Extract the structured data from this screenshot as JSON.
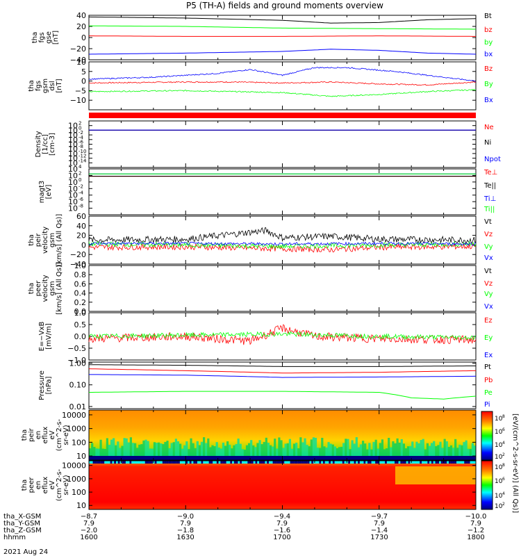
{
  "title": "P5 (TH-A) fields and ground moments overview",
  "date_label": "2021 Aug 24",
  "colorbar_label": "[eV/(cm^2-s-sr-eV)] (All Qs)]",
  "colorbar_ticks": [
    "10^8",
    "10^6",
    "10^4",
    "10^2"
  ],
  "colors": {
    "black": "#000000",
    "red": "#ff0000",
    "green": "#00ff00",
    "blue": "#0000ff",
    "magenta": "#ff00ff",
    "panel_border": "#000000"
  },
  "chart_data": [
    {
      "type": "line",
      "panel": "fgs-gse",
      "ylabel": [
        "tha",
        "fgs",
        "gse",
        "[nT]"
      ],
      "ylim": [
        -40,
        40
      ],
      "yticks": [
        "40",
        "20",
        "0",
        "−20",
        "−40"
      ],
      "xlim": [
        "16:00",
        "18:00"
      ],
      "series": [
        {
          "name": "Bt",
          "color": "black",
          "x": [
            "16:00",
            "16:30",
            "17:00",
            "17:15",
            "17:30",
            "17:45",
            "18:00"
          ],
          "y": [
            37,
            35,
            31,
            26,
            27,
            32,
            34
          ]
        },
        {
          "name": "bz",
          "color": "red",
          "x": [
            "16:00",
            "16:30",
            "17:00",
            "17:30",
            "18:00"
          ],
          "y": [
            3,
            2,
            2,
            3,
            2
          ]
        },
        {
          "name": "by",
          "color": "green",
          "x": [
            "16:00",
            "16:30",
            "17:00",
            "17:30",
            "18:00"
          ],
          "y": [
            21,
            20,
            17,
            16,
            15
          ]
        },
        {
          "name": "bx",
          "color": "blue",
          "x": [
            "16:00",
            "16:30",
            "17:00",
            "17:15",
            "17:30",
            "17:45",
            "18:00"
          ],
          "y": [
            -30,
            -28,
            -25,
            -21,
            -23,
            -28,
            -30
          ]
        }
      ]
    },
    {
      "type": "line",
      "panel": "fgs-gsm",
      "ylabel": [
        "tha",
        "fgs",
        "gsm",
        "dsl",
        "[nT]"
      ],
      "ylim": [
        -15,
        10
      ],
      "yticks": [
        "10",
        "5",
        "0",
        "−5",
        "−10"
      ],
      "xlim": [
        "16:00",
        "18:00"
      ],
      "series": [
        {
          "name": "Bz",
          "color": "red",
          "x": [
            "16:00",
            "16:30",
            "16:45",
            "17:00",
            "17:15",
            "17:30",
            "17:45",
            "18:00"
          ],
          "y": [
            -1,
            -0.5,
            -0.5,
            -1,
            -0.5,
            -1.5,
            -2,
            -0.5
          ]
        },
        {
          "name": "By",
          "color": "green",
          "x": [
            "16:00",
            "16:30",
            "17:00",
            "17:15",
            "17:30",
            "17:45",
            "18:00"
          ],
          "y": [
            -5.5,
            -5,
            -6,
            -8,
            -7,
            -5.5,
            -4.5
          ]
        },
        {
          "name": "Bx",
          "color": "blue",
          "x": [
            "16:00",
            "16:20",
            "16:40",
            "16:50",
            "17:00",
            "17:10",
            "17:20",
            "17:35",
            "17:50",
            "18:00"
          ],
          "y": [
            1,
            2,
            4,
            6,
            3,
            7,
            7,
            5,
            2,
            0
          ]
        }
      ]
    },
    {
      "type": "line",
      "panel": "density",
      "ylabel": [
        "Density",
        "[1/cc]",
        "[cm-3]"
      ],
      "ylim_log10": [
        -16,
        4
      ],
      "yticks": [
        "10^2",
        "10^0",
        "10^-2",
        "10^-4",
        "10^-6",
        "10^-8",
        "10^-10",
        "10^-12",
        "10^-14"
      ],
      "xlim": [
        "16:00",
        "18:00"
      ],
      "series": [
        {
          "name": "Ne",
          "color": "red",
          "x": [
            "16:00",
            "18:00"
          ],
          "y": [
            1,
            1
          ]
        },
        {
          "name": "Ni",
          "color": "black",
          "x": [
            "16:00",
            "18:00"
          ],
          "y": [
            1,
            1
          ]
        },
        {
          "name": "Npot",
          "color": "blue",
          "x": [
            "16:00",
            "18:00"
          ],
          "y": [
            1.2,
            1.2
          ]
        }
      ]
    },
    {
      "type": "line",
      "panel": "temperature",
      "ylabel": [
        "magt3",
        "[eV]"
      ],
      "ylim_log10": [
        -10,
        4
      ],
      "yticks": [
        "10^4",
        "10^2",
        "10^0",
        "10^-2",
        "10^-4",
        "10^-6",
        "10^-8"
      ],
      "xlim": [
        "16:00",
        "18:00"
      ],
      "series": [
        {
          "name": "Te⊥",
          "color": "red",
          "x": [
            "16:00",
            "18:00"
          ],
          "y": [
            50,
            50
          ]
        },
        {
          "name": "Te||",
          "color": "black",
          "x": [
            "16:00",
            "18:00"
          ],
          "y": [
            60,
            60
          ]
        },
        {
          "name": "Ti⊥",
          "color": "blue",
          "x": [
            "16:00",
            "18:00"
          ],
          "y": [
            300,
            300
          ]
        },
        {
          "name": "Ti||",
          "color": "green",
          "x": [
            "16:00",
            "18:00"
          ],
          "y": [
            300,
            300
          ]
        }
      ]
    },
    {
      "type": "line",
      "panel": "peir-velocity",
      "ylabel": [
        "tha",
        "peir",
        "velocity",
        "gsm",
        "[km/s] (All Qs)]"
      ],
      "ylim": [
        -40,
        60
      ],
      "yticks": [
        "60",
        "40",
        "20",
        "0",
        "−20",
        "−40"
      ],
      "xlim": [
        "16:00",
        "18:00"
      ],
      "series": [
        {
          "name": "Vt",
          "color": "black",
          "x": [
            "16:00",
            "16:30",
            "16:55",
            "17:00",
            "17:15",
            "17:30",
            "18:00"
          ],
          "y": [
            10,
            12,
            30,
            15,
            18,
            12,
            10
          ]
        },
        {
          "name": "Vz",
          "color": "red",
          "x": [
            "16:00",
            "16:30",
            "17:00",
            "17:15",
            "17:30",
            "18:00"
          ],
          "y": [
            -5,
            -4,
            -8,
            -10,
            -5,
            -3
          ]
        },
        {
          "name": "Vy",
          "color": "green",
          "x": [
            "16:00",
            "16:30",
            "17:00",
            "17:30",
            "18:00"
          ],
          "y": [
            2,
            0,
            -3,
            0,
            2
          ]
        },
        {
          "name": "Vx",
          "color": "blue",
          "x": [
            "16:00",
            "16:30",
            "17:00",
            "17:30",
            "18:00"
          ],
          "y": [
            3,
            3,
            2,
            3,
            2
          ]
        }
      ]
    },
    {
      "type": "line",
      "panel": "peer-velocity",
      "ylabel": [
        "tha",
        "peer",
        "velocity",
        "gsm",
        "[km/s] (All Qs)]"
      ],
      "ylim": [
        0,
        1
      ],
      "yticks": [
        "1.0",
        "0.8",
        "0.6",
        "0.4",
        "0.2",
        "0.0"
      ],
      "xlim": [
        "16:00",
        "18:00"
      ],
      "series": [
        {
          "name": "Vt",
          "color": "black",
          "x": [],
          "y": []
        },
        {
          "name": "Vz",
          "color": "red",
          "x": [],
          "y": []
        },
        {
          "name": "Vy",
          "color": "green",
          "x": [],
          "y": []
        },
        {
          "name": "Vx",
          "color": "blue",
          "x": [],
          "y": []
        }
      ]
    },
    {
      "type": "line",
      "panel": "efield",
      "ylabel": [
        "E=−VxB",
        "[mV/m]"
      ],
      "ylim": [
        -1,
        1
      ],
      "yticks": [
        "1.0",
        "0.5",
        "0.0",
        "−0.5",
        "−1.0"
      ],
      "xlim": [
        "16:00",
        "18:00"
      ],
      "series": [
        {
          "name": "Ez",
          "color": "red",
          "x": [
            "16:00",
            "16:30",
            "16:50",
            "17:00",
            "17:10",
            "17:30",
            "18:00"
          ],
          "y": [
            -0.1,
            0,
            -0.2,
            0.35,
            0,
            -0.1,
            -0.15
          ]
        },
        {
          "name": "Ey",
          "color": "green",
          "x": [
            "16:00",
            "16:30",
            "17:00",
            "17:30",
            "18:00"
          ],
          "y": [
            0,
            0.05,
            0.1,
            0,
            -0.05
          ]
        },
        {
          "name": "Ex",
          "color": "blue",
          "x": [],
          "y": []
        }
      ]
    },
    {
      "type": "line",
      "panel": "pressure",
      "ylabel": [
        "Pressure",
        "[nPa]"
      ],
      "ylim_log10": [
        -2.1,
        0.05
      ],
      "yticks": [
        "1.00",
        "0.10",
        "0.01"
      ],
      "xlim": [
        "16:00",
        "18:00"
      ],
      "series": [
        {
          "name": "Pt",
          "color": "black",
          "x": [
            "16:00",
            "16:30",
            "17:00",
            "17:30",
            "18:00"
          ],
          "y": [
            0.85,
            0.8,
            0.7,
            0.7,
            0.75
          ]
        },
        {
          "name": "Pb",
          "color": "red",
          "x": [
            "16:00",
            "16:30",
            "17:00",
            "17:30",
            "18:00"
          ],
          "y": [
            0.55,
            0.45,
            0.35,
            0.38,
            0.45
          ]
        },
        {
          "name": "Pe",
          "color": "green",
          "x": [
            "16:00",
            "16:30",
            "17:00",
            "17:30",
            "17:40",
            "17:50",
            "18:00"
          ],
          "y": [
            0.045,
            0.05,
            0.05,
            0.045,
            0.025,
            0.022,
            0.03
          ]
        },
        {
          "name": "Pi",
          "color": "blue",
          "x": [
            "16:00",
            "16:30",
            "17:00",
            "17:30",
            "18:00"
          ],
          "y": [
            0.3,
            0.28,
            0.22,
            0.23,
            0.25
          ]
        }
      ]
    },
    {
      "type": "heatmap",
      "panel": "peir-en-eflux",
      "ylabel": [
        "tha",
        "peir",
        "en",
        "eflux",
        "eV",
        "(cm^2-s-",
        "sr-eV)"
      ],
      "yticks": [
        "10000",
        "1000",
        "100",
        "10"
      ],
      "xlim": [
        "16:00",
        "18:00"
      ]
    },
    {
      "type": "heatmap",
      "panel": "peer-en-eflux",
      "ylabel": [
        "tha",
        "peer",
        "en",
        "eflux",
        "eV",
        "(cm^2-s-",
        "sr-eV)"
      ],
      "yticks": [
        "10000",
        "1000",
        "100",
        "10"
      ],
      "xlim": [
        "16:00",
        "18:00"
      ]
    }
  ],
  "x_axis": {
    "rows": [
      {
        "label": "tha_X-GSM",
        "values": [
          "−8.7",
          "−9.0",
          "−9.4",
          "−9.7",
          "−10.0"
        ]
      },
      {
        "label": "tha_Y-GSM",
        "values": [
          "7.9",
          "7.9",
          "7.9",
          "7.9",
          "7.9"
        ]
      },
      {
        "label": "tha_Z-GSM",
        "values": [
          "−2.0",
          "−1.8",
          "−1.6",
          "−1.4",
          "−1.2"
        ]
      },
      {
        "label": "hhmm",
        "values": [
          "1600",
          "1630",
          "1700",
          "1730",
          "1800"
        ]
      }
    ]
  }
}
